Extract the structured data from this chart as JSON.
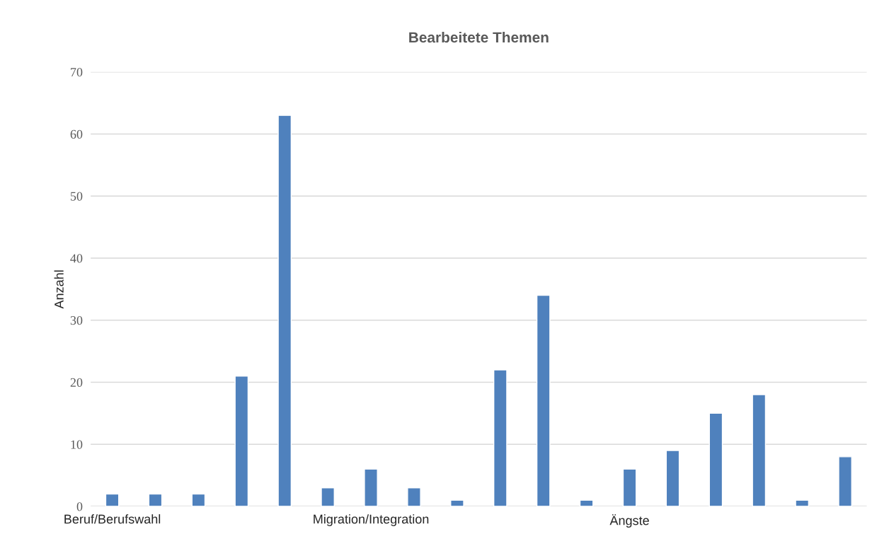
{
  "chart_data": {
    "type": "bar",
    "title": "Bearbeitete Themen",
    "ylabel": "Anzahl",
    "categories": [
      "Beruf/Berufswahl",
      null,
      null,
      null,
      null,
      null,
      "Migration/Integration",
      null,
      null,
      null,
      null,
      null,
      "Ängste",
      null,
      null,
      null,
      null,
      null
    ],
    "values": [
      2,
      2,
      2,
      21,
      63,
      3,
      6,
      3,
      1,
      22,
      34,
      1,
      6,
      9,
      15,
      18,
      1,
      8
    ],
    "color": "#4f81bd",
    "ylim": [
      0,
      70
    ],
    "yticks": [
      0,
      10,
      20,
      30,
      40,
      50,
      60,
      70
    ],
    "grid": "y",
    "legend": false
  }
}
